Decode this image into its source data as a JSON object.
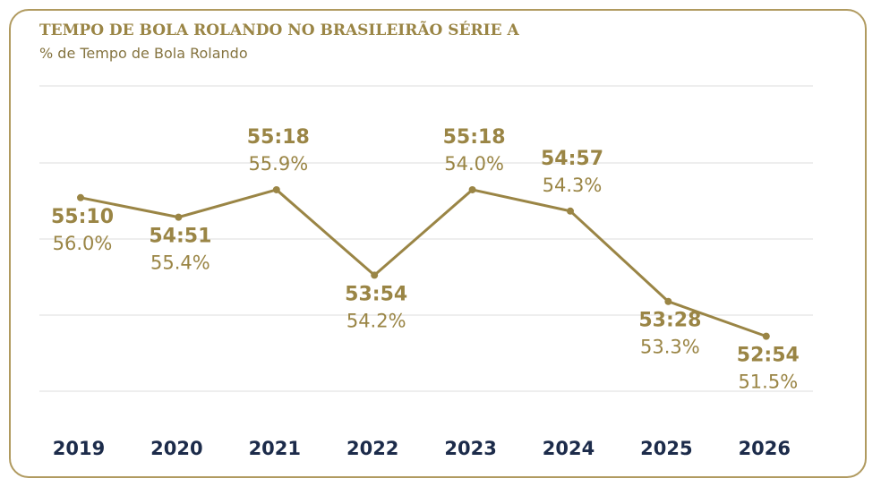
{
  "chart_data": {
    "type": "line",
    "title": "TEMPO DE BOLA ROLANDO NO BRASILEIRÃO SÉRIE A",
    "subtitle": "% de Tempo de Bola Rolando",
    "categories": [
      "2019",
      "2020",
      "2021",
      "2022",
      "2023",
      "2024",
      "2025",
      "2026"
    ],
    "values": [
      55.17,
      54.85,
      55.3,
      53.9,
      55.3,
      54.95,
      53.47,
      52.9
    ],
    "time_labels": [
      "55:10",
      "54:51",
      "55:18",
      "53:54",
      "55:18",
      "54:57",
      "53:28",
      "52:54"
    ],
    "percent_labels": [
      "56.0%",
      "55.4%",
      "55.9%",
      "54.2%",
      "54.0%",
      "54.3%",
      "53.3%",
      "51.5%"
    ],
    "label_position": [
      "below",
      "below",
      "above",
      "below",
      "above",
      "above",
      "below",
      "below"
    ],
    "ylim": [
      52,
      57
    ],
    "grid": true,
    "colors": {
      "line": "#9a8545",
      "text": "#9a8545",
      "axis_text": "#1c2b4a",
      "grid": "#dcdcdc",
      "border": "#b09a5f"
    }
  }
}
